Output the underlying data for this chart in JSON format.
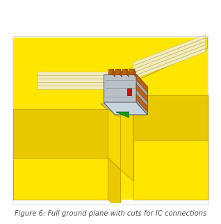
{
  "bg_color": "#ffffff",
  "gp_yellow": "#FFE600",
  "gp_face_bright": "#FFE600",
  "gp_face_mid": "#F5D800",
  "gp_face_dark": "#E8C800",
  "gp_edge": "#C8A800",
  "trace_fill": "#F0ECC0",
  "trace_edge": "#C8B870",
  "ic_front": "#B8C0C8",
  "ic_top": "#C8D4DC",
  "ic_right": "#A0A8B0",
  "ic_pin": "#C06010",
  "ic_green": "#10A010",
  "ic_red": "#CC1010",
  "ic_pad": "#D8B860",
  "caption": "Figure 6: Full ground plane with cuts for IC connections",
  "caption_color": "#505050",
  "caption_fontsize": 7.2
}
